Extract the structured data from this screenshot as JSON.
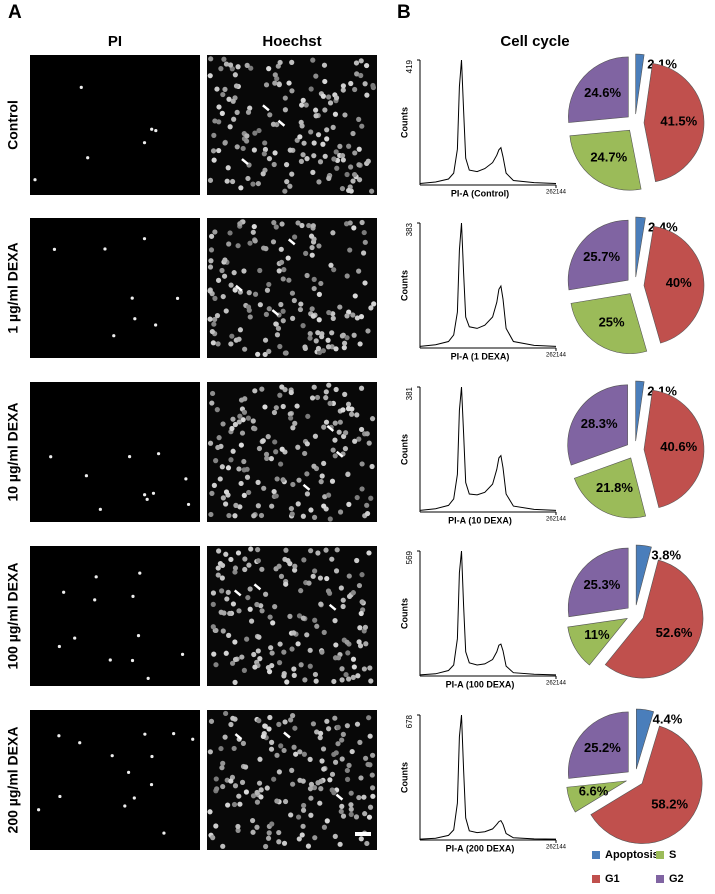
{
  "panel_labels": [
    "A",
    "B"
  ],
  "column_headers": {
    "pi": "PI",
    "hoechst": "Hoechst",
    "cell_cycle": "Cell cycle"
  },
  "row_labels": [
    "Control",
    "1 µg/ml DEXA",
    "10 µg/ml DEXA",
    "100 µg/ml DEXA",
    "200 µg/ml DEXA"
  ],
  "legend": {
    "labels": [
      "Apoptosis",
      "S",
      "G1",
      "G2"
    ],
    "colors": [
      "#4a7ebb",
      "#9bbb59",
      "#c0504d",
      "#8064a2"
    ]
  },
  "chart_data": [
    {
      "type": "line",
      "x_label": "PI-A (Control)",
      "y_label": "Counts",
      "x": [
        0,
        30000,
        55000,
        65000,
        72000,
        76000,
        80000,
        84000,
        88000,
        95000,
        110000,
        125000,
        140000,
        148000,
        152000,
        156000,
        160000,
        166000,
        180000,
        220000,
        262144
      ],
      "values": [
        5,
        10,
        20,
        40,
        120,
        330,
        419,
        250,
        90,
        50,
        45,
        55,
        75,
        100,
        118,
        125,
        95,
        40,
        15,
        8,
        5
      ],
      "xlim": [
        0,
        262144
      ],
      "xticks": [
        262144
      ],
      "ylim": [
        0,
        419
      ],
      "yticks": [
        419
      ]
    },
    {
      "type": "pie",
      "values": [
        2.1,
        41.5,
        24.7,
        24.6
      ],
      "value_labels": [
        "2.1%",
        "41.5%",
        "24.7%",
        "24.6%"
      ]
    },
    {
      "type": "line",
      "x_label": "PI-A (1 DEXA)",
      "y_label": "Counts",
      "x": [
        0,
        30000,
        55000,
        65000,
        72000,
        76000,
        80000,
        84000,
        88000,
        95000,
        110000,
        125000,
        140000,
        148000,
        152000,
        156000,
        160000,
        166000,
        180000,
        220000,
        262144
      ],
      "values": [
        5,
        10,
        20,
        40,
        110,
        300,
        383,
        230,
        95,
        65,
        60,
        70,
        95,
        140,
        180,
        190,
        150,
        60,
        20,
        8,
        5
      ],
      "xlim": [
        0,
        262144
      ],
      "xticks": [
        262144
      ],
      "ylim": [
        0,
        383
      ],
      "yticks": [
        383
      ]
    },
    {
      "type": "pie",
      "values": [
        2.4,
        40,
        25,
        25.7
      ],
      "value_labels": [
        "2.4%",
        "40%",
        "25%",
        "25.7%"
      ]
    },
    {
      "type": "line",
      "x_label": "PI-A (10 DEXA)",
      "y_label": "Counts",
      "x": [
        0,
        30000,
        55000,
        65000,
        72000,
        76000,
        80000,
        84000,
        88000,
        95000,
        110000,
        125000,
        140000,
        148000,
        152000,
        156000,
        160000,
        166000,
        180000,
        220000,
        262144
      ],
      "values": [
        5,
        10,
        20,
        40,
        115,
        310,
        381,
        240,
        90,
        55,
        52,
        60,
        85,
        130,
        165,
        172,
        135,
        55,
        18,
        8,
        5
      ],
      "xlim": [
        0,
        262144
      ],
      "xticks": [
        262144
      ],
      "ylim": [
        0,
        381
      ],
      "yticks": [
        381
      ]
    },
    {
      "type": "pie",
      "values": [
        2.1,
        40.6,
        21.8,
        28.3
      ],
      "value_labels": [
        "2.1%",
        "40.6%",
        "21.8%",
        "28.3%"
      ]
    },
    {
      "type": "line",
      "x_label": "PI-A (100 DEXA)",
      "y_label": "Counts",
      "x": [
        0,
        30000,
        55000,
        65000,
        72000,
        76000,
        80000,
        84000,
        88000,
        95000,
        110000,
        125000,
        140000,
        148000,
        152000,
        156000,
        160000,
        166000,
        180000,
        220000,
        262144
      ],
      "values": [
        5,
        10,
        25,
        50,
        170,
        470,
        569,
        320,
        110,
        60,
        50,
        55,
        75,
        110,
        140,
        145,
        115,
        45,
        15,
        8,
        5
      ],
      "xlim": [
        0,
        262144
      ],
      "xticks": [
        262144
      ],
      "ylim": [
        0,
        569
      ],
      "yticks": [
        569
      ]
    },
    {
      "type": "pie",
      "values": [
        3.8,
        52.6,
        11,
        25.3
      ],
      "value_labels": [
        "3.8%",
        "52.6%",
        "11%",
        "25.3%"
      ]
    },
    {
      "type": "line",
      "x_label": "PI-A (200 DEXA)",
      "y_label": "Counts",
      "x": [
        0,
        30000,
        55000,
        65000,
        72000,
        76000,
        80000,
        84000,
        88000,
        95000,
        110000,
        125000,
        140000,
        148000,
        152000,
        156000,
        160000,
        166000,
        180000,
        220000,
        262144
      ],
      "values": [
        5,
        10,
        25,
        55,
        200,
        560,
        678,
        380,
        120,
        50,
        40,
        45,
        60,
        85,
        100,
        105,
        85,
        35,
        12,
        6,
        5
      ],
      "xlim": [
        0,
        262144
      ],
      "xticks": [
        262144
      ],
      "ylim": [
        0,
        678
      ],
      "yticks": [
        678
      ]
    },
    {
      "type": "pie",
      "values": [
        4.4,
        58.2,
        6.6,
        25.2
      ],
      "value_labels": [
        "4.4%",
        "58.2%",
        "6.6%",
        "25.2%"
      ]
    }
  ]
}
